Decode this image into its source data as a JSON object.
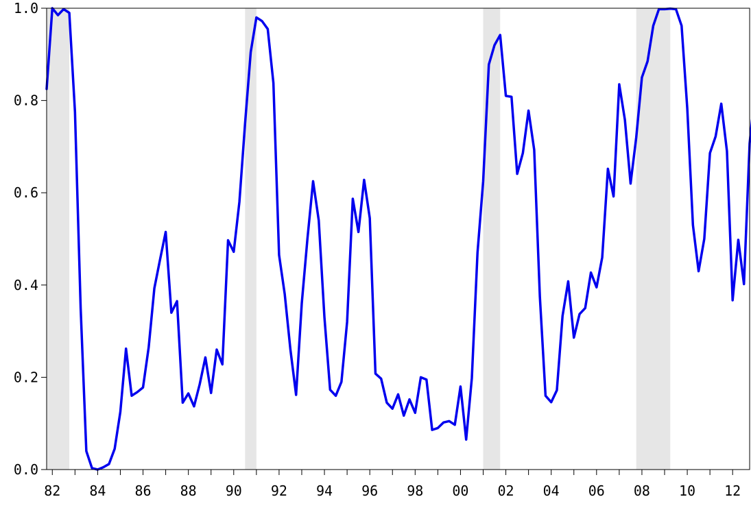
{
  "chart_data": {
    "type": "line",
    "title": "",
    "xlabel": "",
    "ylabel": "",
    "xlim": [
      1981.875,
      1997.875
    ],
    "ylim": [
      0,
      1
    ],
    "grid": false,
    "legend": "none",
    "x_tick_labels": [
      "82",
      "84",
      "86",
      "88",
      "90",
      "92",
      "94",
      "96",
      "98",
      "00",
      "02",
      "04",
      "06",
      "08",
      "10",
      "12"
    ],
    "x_tick_labels_value_at": [
      1982,
      1984,
      1986,
      1988,
      1990,
      1992,
      1994,
      1996,
      1998,
      2000,
      2002,
      2004,
      2006,
      2008,
      2010,
      2012
    ],
    "y_ticks": [
      0.0,
      0.2,
      0.4,
      0.6,
      0.8,
      1.0
    ],
    "y_tick_labels": [
      "0.0",
      "0.2",
      "0.4",
      "0.6",
      "0.8",
      "1.0"
    ],
    "recession_bands": [
      {
        "start": 1981.5,
        "end": 1982.75
      },
      {
        "start": 1990.5,
        "end": 1991.0
      },
      {
        "start": 2001.0,
        "end": 2001.75
      },
      {
        "start": 2007.75,
        "end": 2009.25
      }
    ],
    "colors": {
      "series": "#0000ee",
      "recession_band": "#e6e6e6",
      "axes": "#000000"
    },
    "series": [
      {
        "name": "",
        "x_start": 1981.75,
        "x_step": 0.25,
        "values": [
          0.825,
          1.0,
          0.985,
          0.998,
          0.99,
          0.775,
          0.35,
          0.04,
          0.003,
          0.0,
          0.005,
          0.012,
          0.045,
          0.125,
          0.262,
          0.16,
          0.168,
          0.178,
          0.265,
          0.393,
          0.455,
          0.515,
          0.34,
          0.365,
          0.145,
          0.165,
          0.137,
          0.185,
          0.243,
          0.166,
          0.26,
          0.228,
          0.497,
          0.472,
          0.58,
          0.75,
          0.905,
          0.98,
          0.972,
          0.955,
          0.838,
          0.465,
          0.38,
          0.26,
          0.162,
          0.36,
          0.5,
          0.625,
          0.54,
          0.33,
          0.173,
          0.16,
          0.19,
          0.32,
          0.587,
          0.515,
          0.628,
          0.545,
          0.208,
          0.197,
          0.145,
          0.132,
          0.163,
          0.117,
          0.152,
          0.123,
          0.2,
          0.195,
          0.086,
          0.09,
          0.102,
          0.105,
          0.097,
          0.18,
          0.065,
          0.198,
          0.47,
          0.625,
          0.878,
          0.92,
          0.942,
          0.81,
          0.808,
          0.641,
          0.686,
          0.778,
          0.693,
          0.375,
          0.16,
          0.146,
          0.172,
          0.333,
          0.408,
          0.286,
          0.337,
          0.35,
          0.427,
          0.395,
          0.46,
          0.652,
          0.592,
          0.835,
          0.758,
          0.62,
          0.72,
          0.85,
          0.885,
          0.962,
          0.998,
          0.998,
          0.999,
          0.998,
          0.962,
          0.783,
          0.53,
          0.43,
          0.5,
          0.686,
          0.722,
          0.793,
          0.69,
          0.367,
          0.498,
          0.402,
          0.707,
          0.825
        ]
      }
    ]
  }
}
